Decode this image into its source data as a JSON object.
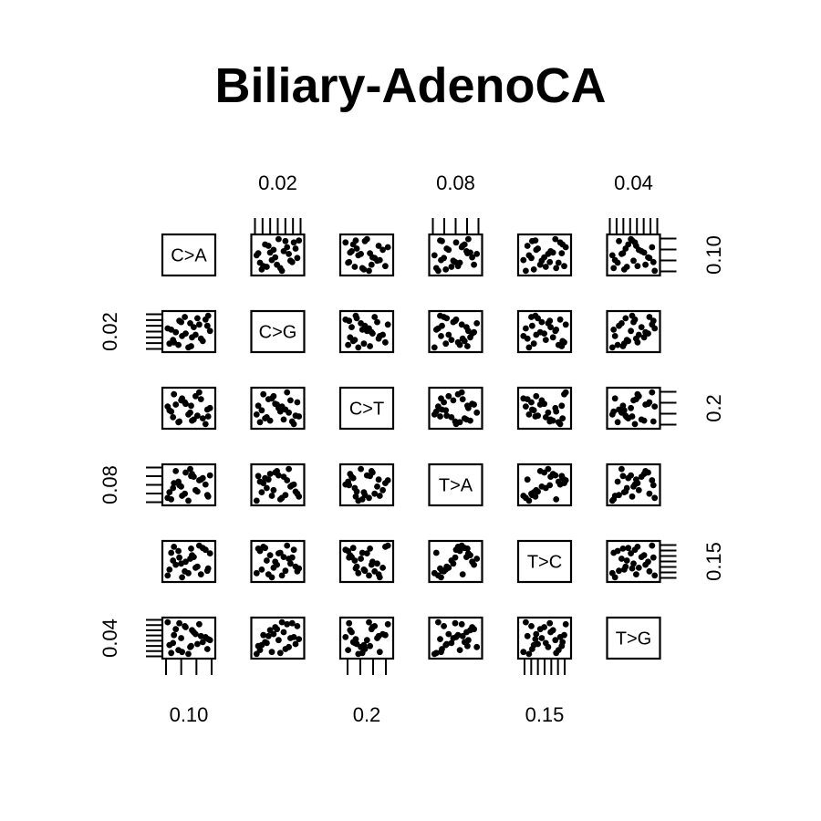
{
  "chart_data": {
    "type": "scatter",
    "title": "Biliary-AdenoCA",
    "variables": [
      "C>A",
      "C>G",
      "C>T",
      "T>A",
      "T>C",
      "T>G"
    ],
    "axis_tick_labels": {
      "top": [
        "0.02",
        "0.08",
        "0.04"
      ],
      "bottom": [
        "0.10",
        "0.2",
        "0.15"
      ],
      "left": [
        "0.02",
        "0.08",
        "0.04"
      ],
      "right": [
        "0.10",
        "0.2",
        "0.15"
      ]
    },
    "samples": [
      [
        0.094,
        0.012,
        0.212,
        0.071,
        0.131,
        0.036
      ],
      [
        0.121,
        0.025,
        0.188,
        0.093,
        0.152,
        0.049
      ],
      [
        0.108,
        0.018,
        0.243,
        0.066,
        0.118,
        0.029
      ],
      [
        0.134,
        0.031,
        0.176,
        0.082,
        0.164,
        0.044
      ],
      [
        0.101,
        0.021,
        0.227,
        0.101,
        0.139,
        0.052
      ],
      [
        0.115,
        0.009,
        0.201,
        0.059,
        0.125,
        0.027
      ],
      [
        0.127,
        0.027,
        0.259,
        0.088,
        0.171,
        0.057
      ],
      [
        0.098,
        0.015,
        0.194,
        0.077,
        0.146,
        0.038
      ],
      [
        0.139,
        0.022,
        0.218,
        0.095,
        0.158,
        0.041
      ],
      [
        0.111,
        0.033,
        0.233,
        0.069,
        0.128,
        0.055
      ],
      [
        0.104,
        0.011,
        0.181,
        0.086,
        0.162,
        0.031
      ],
      [
        0.123,
        0.019,
        0.249,
        0.074,
        0.134,
        0.047
      ],
      [
        0.117,
        0.028,
        0.206,
        0.104,
        0.149,
        0.034
      ],
      [
        0.092,
        0.024,
        0.222,
        0.063,
        0.121,
        0.059
      ],
      [
        0.131,
        0.014,
        0.191,
        0.091,
        0.167,
        0.039
      ],
      [
        0.107,
        0.029,
        0.238,
        0.079,
        0.141,
        0.043
      ],
      [
        0.119,
        0.017,
        0.185,
        0.097,
        0.155,
        0.051
      ],
      [
        0.136,
        0.026,
        0.214,
        0.067,
        0.129,
        0.032
      ],
      [
        0.099,
        0.013,
        0.254,
        0.084,
        0.169,
        0.046
      ],
      [
        0.125,
        0.032,
        0.198,
        0.072,
        0.136,
        0.037
      ],
      [
        0.112,
        0.02,
        0.229,
        0.099,
        0.144,
        0.054
      ],
      [
        0.096,
        0.023,
        0.209,
        0.061,
        0.159,
        0.028
      ],
      [
        0.129,
        0.016,
        0.241,
        0.089,
        0.123,
        0.045
      ],
      [
        0.105,
        0.03,
        0.183,
        0.081,
        0.151,
        0.058
      ],
      [
        0.118,
        0.01,
        0.224,
        0.094,
        0.166,
        0.035
      ],
      [
        0.137,
        0.034,
        0.196,
        0.065,
        0.133,
        0.042
      ]
    ],
    "grid": false,
    "legend": "none"
  }
}
